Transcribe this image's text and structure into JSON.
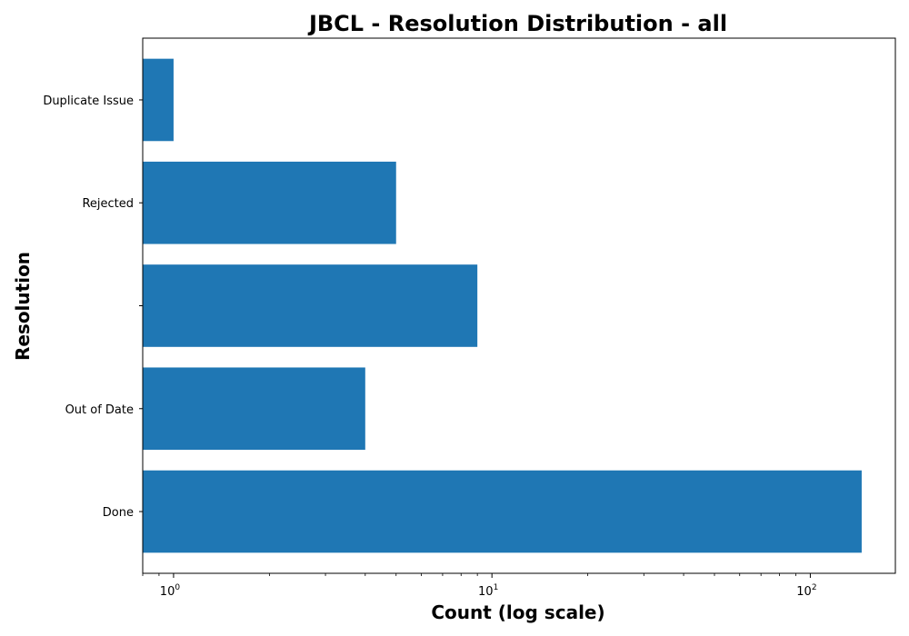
{
  "chart_data": {
    "type": "bar",
    "orientation": "horizontal",
    "title": "JBCL - Resolution Distribution - all",
    "xlabel": "Count (log scale)",
    "ylabel": "Resolution",
    "x_scale": "log",
    "xlim": [
      0.8,
      185
    ],
    "x_ticks": [
      {
        "base": "10",
        "exp": "0",
        "value": 1
      },
      {
        "base": "10",
        "exp": "1",
        "value": 10
      },
      {
        "base": "10",
        "exp": "2",
        "value": 100
      }
    ],
    "categories": [
      "Done",
      "Out of Date",
      "",
      "Rejected",
      "Duplicate Issue"
    ],
    "values": [
      145,
      4,
      9,
      5,
      1
    ],
    "bar_color": "#1f77b4",
    "grid": false,
    "legend": "none"
  }
}
